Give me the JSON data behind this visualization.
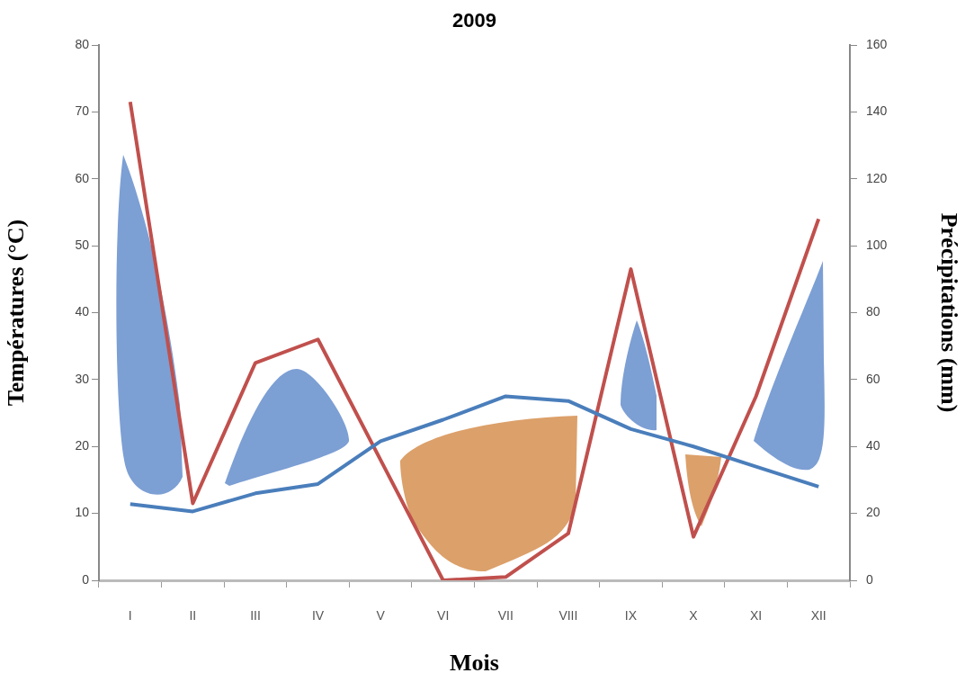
{
  "chart_data": {
    "type": "line",
    "title": "2009",
    "xlabel": "Mois",
    "ylabel": "Températures (°C)",
    "y2label": "Précipitations (mm)",
    "categories": [
      "I",
      "II",
      "III",
      "IV",
      "V",
      "VI",
      "VII",
      "VIII",
      "IX",
      "X",
      "XI",
      "XII"
    ],
    "series": [
      {
        "color": "#4a7ebb",
        "values": [
          11.4,
          10.3,
          13,
          14.4,
          20.8,
          24,
          27.5,
          26.8,
          22.6,
          20,
          17,
          14
        ]
      },
      {
        "color": "#c0504d",
        "axis": "y2",
        "values": [
          143,
          23,
          65,
          72,
          36,
          0,
          1,
          14,
          93,
          13,
          55,
          108
        ]
      }
    ],
    "ylim": [
      0,
      80
    ],
    "yticks": [
      0,
      10,
      20,
      30,
      40,
      50,
      60,
      70,
      80
    ],
    "y2lim": [
      0,
      160
    ],
    "y2ticks": [
      0,
      20,
      40,
      60,
      80,
      100,
      120,
      140,
      160
    ],
    "grid": false,
    "legend": false,
    "marker": "none",
    "line_style": "solid"
  }
}
